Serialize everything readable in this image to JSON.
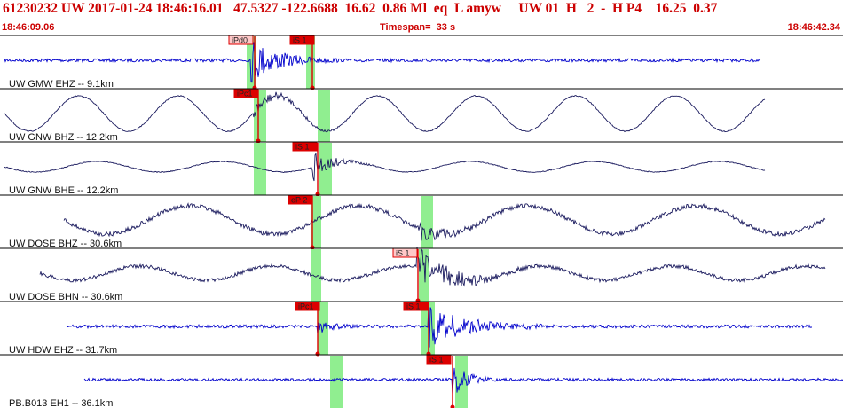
{
  "header": {
    "title": "61230232 UW 2017-01-24 18:46:16.01   47.5327 -122.6688  16.62  0.86 Ml  eq  L amyw     UW 01  H   2  -  H P4    16.25  0.37",
    "start_time": "18:46:09.06",
    "timespan": "Timespan=  33 s",
    "end_time": "18:46:42.34"
  },
  "colors": {
    "title_red": "#cc0000",
    "trace_blue": "#0000cc",
    "trace_dark": "#1a1a5e",
    "pick_red": "#dd0000",
    "window_green": "#90ee90"
  },
  "traces": [
    {
      "label": "UW GMW EHZ -- 9.1km",
      "style": "blue-noise",
      "picks": [
        {
          "text": "iPd0",
          "selected": true
        },
        {
          "text": "iS 1",
          "selected": false
        }
      ]
    },
    {
      "label": "UW GNW BHZ -- 12.2km",
      "style": "wave",
      "picks": [
        {
          "text": "iPc1",
          "selected": false
        }
      ]
    },
    {
      "label": "UW GNW BHE -- 12.2km",
      "style": "wave",
      "picks": [
        {
          "text": "iS 1",
          "selected": false
        }
      ]
    },
    {
      "label": "UW DOSE BHZ -- 30.6km",
      "style": "dark-noise",
      "picks": [
        {
          "text": "eP 2",
          "selected": false
        }
      ]
    },
    {
      "label": "UW DOSE BHN -- 30.6km",
      "style": "dark-noise",
      "picks": [
        {
          "text": "iS 1",
          "selected": true
        }
      ]
    },
    {
      "label": "UW HDW EHZ -- 31.7km",
      "style": "blue-noise",
      "picks": [
        {
          "text": "iPc1",
          "selected": false
        },
        {
          "text": "iS 1",
          "selected": false
        }
      ]
    },
    {
      "label": "PB.B013 EH1 -- 36.1km",
      "style": "blue-noise",
      "picks": [
        {
          "text": "iS 1",
          "selected": false
        }
      ]
    }
  ]
}
